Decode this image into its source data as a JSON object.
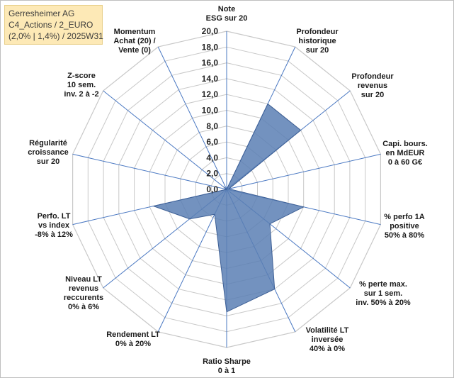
{
  "legend_box": {
    "line1": "Gerresheimer AG",
    "line2": "C4_Actions / 2_EURO",
    "line3": "(2,0% | 1,4%) / 2025W31"
  },
  "chart_data": {
    "type": "radar",
    "rmin": 0,
    "rmax": 20,
    "ticks": [
      "0,0",
      "2,0",
      "4,0",
      "6,0",
      "8,0",
      "10,0",
      "12,0",
      "14,0",
      "16,0",
      "18,0",
      "20,0"
    ],
    "axes": [
      {
        "label": [
          "Note",
          "ESG sur 20"
        ],
        "value": 0.0
      },
      {
        "label": [
          "Profondeur",
          "historique",
          "sur 20"
        ],
        "value": 12.0
      },
      {
        "label": [
          "Profondeur",
          "revenus",
          "sur 20"
        ],
        "value": 12.0
      },
      {
        "label": [
          "Capi. bours.",
          "en MdEUR",
          "0 à 60 G€"
        ],
        "value": 0.3
      },
      {
        "label": [
          "% perfo 1A",
          "positive",
          "50% à 80%"
        ],
        "value": 10.0
      },
      {
        "label": [
          "% perte max.",
          "sur 1 sem.",
          "inv. 50% à 20%"
        ],
        "value": 7.0
      },
      {
        "label": [
          "Volatilité LT",
          "inversée",
          "40% à 0%"
        ],
        "value": 14.0
      },
      {
        "label": [
          "Ratio Sharpe",
          "0 à 1"
        ],
        "value": 15.5
      },
      {
        "label": [
          "Rendement LT",
          "0% à 20%"
        ],
        "value": 3.5
      },
      {
        "label": [
          "Niveau LT",
          "revenus",
          "reccurents",
          "0% à 6%"
        ],
        "value": 6.0
      },
      {
        "label": [
          "Perfo. LT",
          "vs index",
          "-8% à 12%"
        ],
        "value": 9.5
      },
      {
        "label": [
          "Régularité",
          "croissance",
          "sur 20"
        ],
        "value": 0.0
      },
      {
        "label": [
          "Z-score",
          "10 sem.",
          "inv. 2 à -2"
        ],
        "value": 0.5
      },
      {
        "label": [
          "Momentum",
          "Achat (20) /",
          "Vente (0)"
        ],
        "value": 0.0
      }
    ],
    "colors": {
      "fill": "#5b7fb4",
      "stroke": "#3d5f95",
      "grid": "#c8c8c8",
      "spoke": "#4a78c2"
    }
  }
}
